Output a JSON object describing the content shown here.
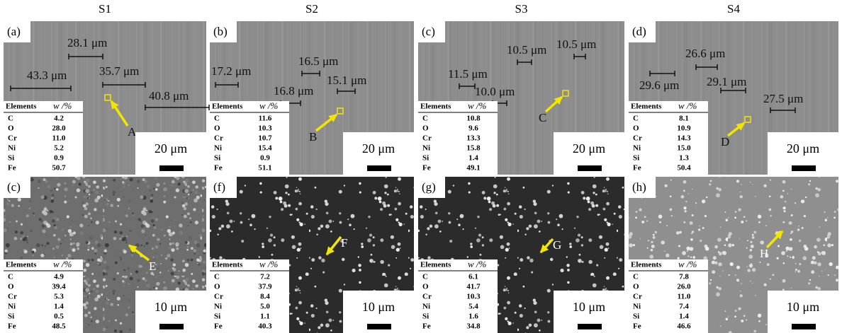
{
  "columns": [
    "S1",
    "S2",
    "S3",
    "S4"
  ],
  "panels": [
    {
      "label": "(a)",
      "measurements": [
        "28.1 μm",
        "43.3 μm",
        "35.7 μm",
        "40.8 μm"
      ],
      "point": "A",
      "scale": "20 μm",
      "table": {
        "header": [
          "Elements",
          "w /%"
        ],
        "rows": [
          [
            "C",
            "4.2"
          ],
          [
            "O",
            "28.0"
          ],
          [
            "Cr",
            "11.0"
          ],
          [
            "Ni",
            "5.2"
          ],
          [
            "Si",
            "0.9"
          ],
          [
            "Fe",
            "50.7"
          ]
        ]
      }
    },
    {
      "label": "(b)",
      "measurements": [
        "17.2 μm",
        "16.5 μm",
        "15.1 μm",
        "16.8 μm"
      ],
      "point": "B",
      "scale": "20 μm",
      "table": {
        "header": [
          "Elements",
          "w /%"
        ],
        "rows": [
          [
            "C",
            "11.6"
          ],
          [
            "O",
            "10.3"
          ],
          [
            "Cr",
            "10.7"
          ],
          [
            "Ni",
            "15.4"
          ],
          [
            "Si",
            "0.9"
          ],
          [
            "Fe",
            "51.1"
          ]
        ]
      }
    },
    {
      "label": "(c)",
      "measurements": [
        "10.5 μm",
        "10.5 μm",
        "11.5 μm",
        "10.0 μm"
      ],
      "point": "C",
      "scale": "20 μm",
      "table": {
        "header": [
          "Elements",
          "w /%"
        ],
        "rows": [
          [
            "C",
            "10.8"
          ],
          [
            "O",
            "9.6"
          ],
          [
            "Cr",
            "13.3"
          ],
          [
            "Ni",
            "15.8"
          ],
          [
            "Si",
            "1.4"
          ],
          [
            "Fe",
            "49.1"
          ]
        ]
      }
    },
    {
      "label": "(d)",
      "measurements": [
        "26.6 μm",
        "29.6 μm",
        "29.1 μm",
        "27.5 μm"
      ],
      "point": "D",
      "scale": "20 μm",
      "table": {
        "header": [
          "Elements",
          "w /%"
        ],
        "rows": [
          [
            "C",
            "8.1"
          ],
          [
            "O",
            "10.9"
          ],
          [
            "Cr",
            "14.3"
          ],
          [
            "Ni",
            "15.0"
          ],
          [
            "Si",
            "1.3"
          ],
          [
            "Fe",
            "50.4"
          ]
        ]
      }
    },
    {
      "label": "(c)",
      "measurements": [],
      "point": "E",
      "scale": "10 μm",
      "table": {
        "header": [
          "Elements",
          "w /%"
        ],
        "rows": [
          [
            "C",
            "4.9"
          ],
          [
            "O",
            "39.4"
          ],
          [
            "Cr",
            "5.3"
          ],
          [
            "Ni",
            "1.4"
          ],
          [
            "Si",
            "0.5"
          ],
          [
            "Fe",
            "48.5"
          ]
        ]
      }
    },
    {
      "label": "(f)",
      "measurements": [],
      "point": "F",
      "scale": "10 μm",
      "table": {
        "header": [
          "Elements",
          "w /%"
        ],
        "rows": [
          [
            "C",
            "7.2"
          ],
          [
            "O",
            "37.9"
          ],
          [
            "Cr",
            "8.4"
          ],
          [
            "Ni",
            "5.0"
          ],
          [
            "Si",
            "1.1"
          ],
          [
            "Fe",
            "40.3"
          ]
        ]
      }
    },
    {
      "label": "(g)",
      "measurements": [],
      "point": "G",
      "scale": "10 μm",
      "table": {
        "header": [
          "Elements",
          "w /%"
        ],
        "rows": [
          [
            "C",
            "6.1"
          ],
          [
            "O",
            "41.7"
          ],
          [
            "Cr",
            "10.3"
          ],
          [
            "Ni",
            "5.4"
          ],
          [
            "Si",
            "1.6"
          ],
          [
            "Fe",
            "34.8"
          ]
        ]
      }
    },
    {
      "label": "(h)",
      "measurements": [],
      "point": "H",
      "scale": "10 μm",
      "table": {
        "header": [
          "Elements",
          "w /%"
        ],
        "rows": [
          [
            "C",
            "7.8"
          ],
          [
            "O",
            "26.0"
          ],
          [
            "Cr",
            "11.0"
          ],
          [
            "Ni",
            "7.4"
          ],
          [
            "Si",
            "1.4"
          ],
          [
            "Fe",
            "46.6"
          ]
        ]
      }
    }
  ]
}
